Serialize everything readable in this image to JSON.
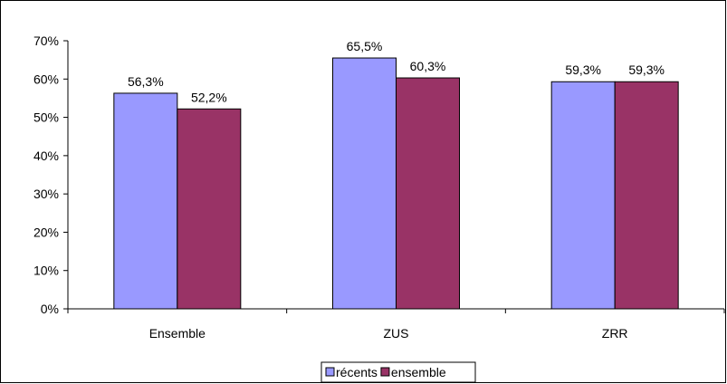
{
  "chart_data": {
    "type": "bar",
    "categories": [
      "Ensemble",
      "ZUS",
      "ZRR"
    ],
    "series": [
      {
        "name": "récents",
        "values": [
          56.3,
          65.5,
          59.3
        ],
        "labels": [
          "56,3%",
          "65,5%",
          "59,3%"
        ],
        "color": "#9999ff"
      },
      {
        "name": "ensemble",
        "values": [
          52.2,
          60.3,
          59.3
        ],
        "labels": [
          "52,2%",
          "60,3%",
          "59,3%"
        ],
        "color": "#993366"
      }
    ],
    "title": "",
    "xlabel": "",
    "ylabel": "",
    "ylim": [
      0,
      70
    ],
    "yticks": [
      0,
      10,
      20,
      30,
      40,
      50,
      60,
      70
    ],
    "ytick_labels": [
      "0%",
      "10%",
      "20%",
      "30%",
      "40%",
      "50%",
      "60%",
      "70%"
    ],
    "grid": false,
    "legend_position": "bottom"
  }
}
